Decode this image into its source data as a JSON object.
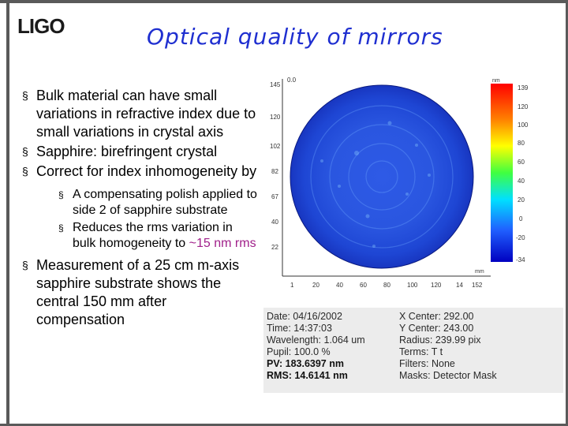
{
  "logo": "LIGO",
  "title": "Optical quality of mirrors",
  "bullets": {
    "b1": "Bulk material can have small variations in refractive index due to small variations in crystal axis",
    "b2": "Sapphire: birefringent crystal",
    "b3": "Correct for index inhomogeneity by",
    "sub1": "A compensating polish applied to side 2 of sapphire substrate",
    "sub2_before": "Reduces the rms variation in bulk homogeneity to ",
    "sub2_highlight": "~15 nm rms",
    "b4": "Measurement of a  25 cm m-axis sapphire substrate shows the central 150 mm after compensation"
  },
  "figure": {
    "y_ticks": [
      "145",
      "120",
      "102",
      "82",
      "67",
      "40",
      "22"
    ],
    "x_ticks": [
      "1",
      "20",
      "40",
      "60",
      "80",
      "100",
      "120",
      "14",
      "152"
    ],
    "corner_label": "0.0",
    "units_top": "nm",
    "units_bottom": "mm",
    "colorbar_labels": [
      "139",
      "120",
      "100",
      "80",
      "60",
      "40",
      "20",
      "0",
      "-20",
      "-34"
    ],
    "info_left": [
      {
        "text": "Date: 04/16/2002",
        "bold": false
      },
      {
        "text": "Time: 14:37:03",
        "bold": false
      },
      {
        "text": "Wavelength: 1.064 um",
        "bold": false
      },
      {
        "text": "Pupil: 100.0 %",
        "bold": false
      },
      {
        "text": "PV: 183.6397 nm",
        "bold": true
      },
      {
        "text": "RMS: 14.6141 nm",
        "bold": true
      }
    ],
    "info_right": [
      {
        "text": "X Center: 292.00",
        "bold": false
      },
      {
        "text": "Y Center: 243.00",
        "bold": false
      },
      {
        "text": "Radius: 239.99 pix",
        "bold": false
      },
      {
        "text": "Terms: T t",
        "bold": false
      },
      {
        "text": "Filters: None",
        "bold": false
      },
      {
        "text": "Masks: Detector Mask",
        "bold": false
      }
    ]
  }
}
